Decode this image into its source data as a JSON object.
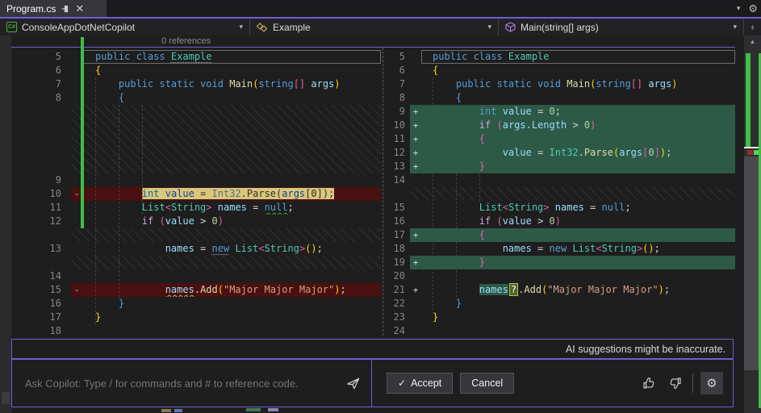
{
  "tab": {
    "title": "Program.cs"
  },
  "navbar": {
    "project": "ConsoleAppDotNetCopilot",
    "type": "Example",
    "member": "Main(string[] args)"
  },
  "codelens": "0 references",
  "panel": {
    "disclaimer": "AI suggestions might be inaccurate.",
    "placeholder": "Ask Copilot: Type / for commands and # to reference code.",
    "accept_label": "Accept",
    "cancel_label": "Cancel",
    "check_glyph": "✓"
  },
  "colors": {
    "accent_purple": "#6c5ed6",
    "added_line_bg": "#2d5a47",
    "removed_line_bg": "#4a1010",
    "changed_word_bg": "#d9c77c",
    "track_change_green": "#3fbf46",
    "editor_bg": "#1e1e1e"
  },
  "panes": {
    "left": {
      "rows": [
        {
          "n": "5",
          "boxed": true,
          "tok": [
            [
              "kw",
              "public class "
            ],
            [
              "typ dot-u",
              "Example"
            ]
          ]
        },
        {
          "n": "6",
          "tok": [
            [
              "p1",
              "{"
            ]
          ]
        },
        {
          "n": "7",
          "tok": [
            [
              "pln",
              "    "
            ],
            [
              "kw",
              "public static void "
            ],
            [
              "meth",
              "Main"
            ],
            [
              "p1",
              "("
            ],
            [
              "kw",
              "string"
            ],
            [
              "p2",
              "[]"
            ],
            [
              "pln",
              " "
            ],
            [
              "vr",
              "args"
            ],
            [
              "p1",
              ")"
            ]
          ]
        },
        {
          "n": "8",
          "tok": [
            [
              "pln",
              "    "
            ],
            [
              "p3",
              "{"
            ]
          ]
        },
        {
          "t": "h",
          "h": 85
        },
        {
          "n": "9",
          "tok": []
        },
        {
          "n": "10",
          "m": "-",
          "bg": "del",
          "delFrom": 1,
          "tok": [
            [
              "pln",
              "        "
            ],
            [
              "dkw",
              "int"
            ],
            [
              "dpl",
              " "
            ],
            [
              "dvar",
              "value"
            ],
            [
              "dpl",
              " = "
            ],
            [
              "dtyp",
              "Int32"
            ],
            [
              "dpl",
              "."
            ],
            [
              "dpl",
              "Parse"
            ],
            [
              "dpl",
              "("
            ],
            [
              "dvar",
              "args"
            ],
            [
              "dpl",
              "[0]);"
            ]
          ]
        },
        {
          "n": "11",
          "tok": [
            [
              "pln",
              "        "
            ],
            [
              "typ",
              "List"
            ],
            [
              "p2",
              "<"
            ],
            [
              "typ",
              "String"
            ],
            [
              "p2",
              ">"
            ],
            [
              "pln",
              " "
            ],
            [
              "vr",
              "names"
            ],
            [
              "op",
              " = "
            ],
            [
              "kw sq-g",
              "null"
            ],
            [
              "op",
              ";"
            ]
          ]
        },
        {
          "n": "12",
          "tok": [
            [
              "pln",
              "        "
            ],
            [
              "ctrl",
              "if"
            ],
            [
              "pln",
              " "
            ],
            [
              "p2",
              "("
            ],
            [
              "vr",
              "value"
            ],
            [
              "op",
              " > "
            ],
            [
              "tnum",
              "0"
            ],
            [
              "p2",
              ")"
            ]
          ]
        },
        {
          "t": "h",
          "h": 17
        },
        {
          "n": "13",
          "tok": [
            [
              "pln",
              "            "
            ],
            [
              "vr",
              "names"
            ],
            [
              "op",
              " = "
            ],
            [
              "kw dot-u",
              "new"
            ],
            [
              "pln",
              " "
            ],
            [
              "typ",
              "List"
            ],
            [
              "p2",
              "<"
            ],
            [
              "typ",
              "String"
            ],
            [
              "p2",
              ">"
            ],
            [
              "p1",
              "()"
            ],
            [
              "op",
              ";"
            ]
          ]
        },
        {
          "t": "h",
          "h": 17
        },
        {
          "n": "14",
          "tok": []
        },
        {
          "n": "15",
          "m": "-",
          "bg": "del",
          "tok": [
            [
              "pln",
              "            "
            ],
            [
              "vr sq-y",
              "names"
            ],
            [
              "op",
              "."
            ],
            [
              "meth",
              "Add"
            ],
            [
              "p1",
              "("
            ],
            [
              "str",
              "\"Major Major Major\""
            ],
            [
              "p1",
              ")"
            ],
            [
              "op",
              ";"
            ]
          ]
        },
        {
          "n": "16",
          "tok": [
            [
              "pln",
              "    "
            ],
            [
              "p3",
              "}"
            ]
          ]
        },
        {
          "n": "17",
          "tok": [
            [
              "p1",
              "}"
            ]
          ]
        },
        {
          "n": "18",
          "tok": []
        }
      ]
    },
    "right": {
      "rows": [
        {
          "n": "5",
          "boxed": true,
          "tok": [
            [
              "kw",
              "public class "
            ],
            [
              "typ",
              "Example"
            ]
          ]
        },
        {
          "n": "6",
          "tok": [
            [
              "p1",
              "{"
            ]
          ]
        },
        {
          "n": "7",
          "tok": [
            [
              "pln",
              "    "
            ],
            [
              "kw",
              "public static void "
            ],
            [
              "meth",
              "Main"
            ],
            [
              "p1",
              "("
            ],
            [
              "kw",
              "string"
            ],
            [
              "p2",
              "[]"
            ],
            [
              "pln",
              " "
            ],
            [
              "vr",
              "args"
            ],
            [
              "p1",
              ")"
            ]
          ]
        },
        {
          "n": "8",
          "tok": [
            [
              "pln",
              "    "
            ],
            [
              "p3",
              "{"
            ]
          ]
        },
        {
          "n": "9",
          "m": "+",
          "bg": "add",
          "tok": [
            [
              "pln",
              "        "
            ],
            [
              "kw",
              "int"
            ],
            [
              "pln",
              " "
            ],
            [
              "vr",
              "value"
            ],
            [
              "op",
              " = "
            ],
            [
              "tnum",
              "0"
            ],
            [
              "op",
              ";"
            ]
          ]
        },
        {
          "n": "10",
          "m": "+",
          "bg": "add",
          "tok": [
            [
              "pln",
              "        "
            ],
            [
              "ctrl",
              "if"
            ],
            [
              "pln",
              " "
            ],
            [
              "p2",
              "("
            ],
            [
              "vr",
              "args"
            ],
            [
              "op",
              "."
            ],
            [
              "vr",
              "Length"
            ],
            [
              "op",
              " > "
            ],
            [
              "tnum",
              "0"
            ],
            [
              "p2",
              ")"
            ]
          ]
        },
        {
          "n": "11",
          "m": "+",
          "bg": "add",
          "tok": [
            [
              "pln",
              "        "
            ],
            [
              "p2",
              "{"
            ]
          ]
        },
        {
          "n": "12",
          "m": "+",
          "bg": "add",
          "tok": [
            [
              "pln",
              "            "
            ],
            [
              "vr",
              "value"
            ],
            [
              "op",
              " = "
            ],
            [
              "typ",
              "Int32"
            ],
            [
              "op",
              "."
            ],
            [
              "meth",
              "Parse"
            ],
            [
              "p1",
              "("
            ],
            [
              "vr",
              "args"
            ],
            [
              "p2",
              "["
            ],
            [
              "tnum",
              "0"
            ],
            [
              "p2",
              "]"
            ],
            [
              "p1",
              ")"
            ],
            [
              "op",
              ";"
            ]
          ]
        },
        {
          "n": "13",
          "m": "+",
          "bg": "add",
          "tok": [
            [
              "pln",
              "        "
            ],
            [
              "p2",
              "}"
            ]
          ]
        },
        {
          "n": "14",
          "tok": []
        },
        {
          "t": "h",
          "h": 17
        },
        {
          "n": "15",
          "tok": [
            [
              "pln",
              "        "
            ],
            [
              "typ",
              "List"
            ],
            [
              "p2",
              "<"
            ],
            [
              "typ",
              "String"
            ],
            [
              "p2",
              ">"
            ],
            [
              "pln",
              " "
            ],
            [
              "vr",
              "names"
            ],
            [
              "op",
              " = "
            ],
            [
              "kw",
              "null"
            ],
            [
              "op",
              ";"
            ]
          ]
        },
        {
          "n": "16",
          "tok": [
            [
              "pln",
              "        "
            ],
            [
              "ctrl",
              "if"
            ],
            [
              "pln",
              " "
            ],
            [
              "p2",
              "("
            ],
            [
              "vr",
              "value"
            ],
            [
              "op",
              " > "
            ],
            [
              "tnum",
              "0"
            ],
            [
              "p2",
              ")"
            ]
          ]
        },
        {
          "n": "17",
          "m": "+",
          "bg": "add",
          "tok": [
            [
              "pln",
              "        "
            ],
            [
              "p2",
              "{"
            ]
          ]
        },
        {
          "n": "18",
          "tok": [
            [
              "pln",
              "            "
            ],
            [
              "vr",
              "names"
            ],
            [
              "op",
              " = "
            ],
            [
              "kw",
              "new"
            ],
            [
              "pln",
              " "
            ],
            [
              "typ",
              "List"
            ],
            [
              "p2",
              "<"
            ],
            [
              "typ",
              "String"
            ],
            [
              "p2",
              ">"
            ],
            [
              "p1",
              "()"
            ],
            [
              "op",
              ";"
            ]
          ]
        },
        {
          "n": "19",
          "m": "+",
          "bg": "add",
          "tok": [
            [
              "pln",
              "        "
            ],
            [
              "p2",
              "}"
            ]
          ]
        },
        {
          "n": "20",
          "tok": []
        },
        {
          "n": "21",
          "m": "+",
          "tok": [
            [
              "pln",
              "        "
            ],
            [
              "varg",
              "names"
            ],
            [
              "qbox",
              "?"
            ],
            [
              "op",
              "."
            ],
            [
              "meth",
              "Add"
            ],
            [
              "p1",
              "("
            ],
            [
              "str",
              "\"Major Major Major\""
            ],
            [
              "p1",
              ")"
            ],
            [
              "op",
              ";"
            ]
          ]
        },
        {
          "n": "22",
          "tok": [
            [
              "pln",
              "    "
            ],
            [
              "p3",
              "}"
            ]
          ]
        },
        {
          "n": "23",
          "tok": [
            [
              "p1",
              "}"
            ]
          ]
        },
        {
          "n": "24",
          "tok": []
        }
      ]
    }
  }
}
